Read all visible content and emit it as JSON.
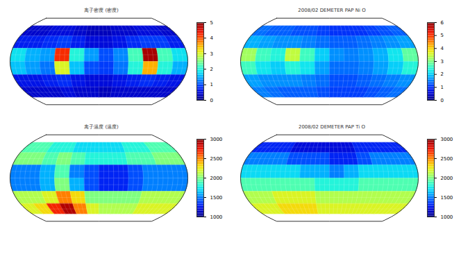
{
  "chart_data": [
    {
      "type": "map",
      "title": "离子密度 (密度)",
      "color": "jet",
      "lat_edges": [
        60,
        40,
        20,
        0,
        -20,
        -40,
        -60
      ],
      "lon_edges": [
        -180,
        -150,
        -120,
        -90,
        -60,
        -30,
        0,
        30,
        60,
        90,
        120,
        150,
        180
      ],
      "cells": [
        [
          0.4,
          0.4,
          0.5,
          0.5,
          0.4,
          0.3,
          0.3,
          0.4,
          0.4,
          0.5,
          0.5,
          0.4
        ],
        [
          0.7,
          0.7,
          0.8,
          0.9,
          0.7,
          0.5,
          0.5,
          0.6,
          0.8,
          0.9,
          0.9,
          0.7
        ],
        [
          1.8,
          1.5,
          1.4,
          4.2,
          2.0,
          1.4,
          1.0,
          1.3,
          2.2,
          4.8,
          2.2,
          1.8
        ],
        [
          1.6,
          1.4,
          1.2,
          3.0,
          1.6,
          1.0,
          0.9,
          1.2,
          2.0,
          3.5,
          2.0,
          1.5
        ],
        [
          0.6,
          0.6,
          0.7,
          0.8,
          0.6,
          0.5,
          0.5,
          0.6,
          0.7,
          0.8,
          0.7,
          0.6
        ],
        [
          0.4,
          0.4,
          0.4,
          0.5,
          0.4,
          0.4,
          0.3,
          0.4,
          0.4,
          0.4,
          0.4,
          0.4
        ]
      ],
      "colorbar": {
        "range": [
          0,
          5
        ],
        "ticks": [
          0,
          1,
          2,
          3,
          4,
          5
        ]
      }
    },
    {
      "type": "map",
      "title": "2008/02 DEMETER PAP Ni O",
      "color": "jet",
      "lat_edges": [
        60,
        40,
        20,
        0,
        -20,
        -40,
        -60
      ],
      "lon_edges": [
        -180,
        -150,
        -120,
        -90,
        -60,
        -30,
        0,
        30,
        60,
        90,
        120,
        150,
        180
      ],
      "cells": [
        [
          1.4,
          1.3,
          1.3,
          1.2,
          1.2,
          1.1,
          1.0,
          1.0,
          1.0,
          1.1,
          1.2,
          1.3
        ],
        [
          1.8,
          1.7,
          1.6,
          1.6,
          1.5,
          1.4,
          1.3,
          1.3,
          1.4,
          1.5,
          1.6,
          1.7
        ],
        [
          3.2,
          2.6,
          2.4,
          3.4,
          2.6,
          2.0,
          1.6,
          1.5,
          1.6,
          1.8,
          2.2,
          2.8
        ],
        [
          2.6,
          2.2,
          2.0,
          2.4,
          2.2,
          1.7,
          1.4,
          1.4,
          1.5,
          1.7,
          2.0,
          2.4
        ],
        [
          1.7,
          1.6,
          1.6,
          1.6,
          1.5,
          1.4,
          1.2,
          1.2,
          1.3,
          1.4,
          1.5,
          1.6
        ],
        [
          1.5,
          1.4,
          1.3,
          1.3,
          1.3,
          1.2,
          1.1,
          1.1,
          1.1,
          1.2,
          1.3,
          1.4
        ]
      ],
      "colorbar": {
        "range": [
          0,
          6
        ],
        "ticks": [
          0,
          1,
          2,
          3,
          4,
          5,
          6
        ]
      }
    },
    {
      "type": "map",
      "title": "离子温度 (温度)",
      "color": "jet",
      "lat_edges": [
        60,
        40,
        20,
        0,
        -20,
        -40,
        -60
      ],
      "lon_edges": [
        -180,
        -150,
        -120,
        -90,
        -60,
        -30,
        0,
        30,
        60,
        90,
        120,
        150,
        180
      ],
      "cells": [
        [
          1900,
          1900,
          1800,
          1800,
          1700,
          1700,
          1700,
          1700,
          1800,
          1800,
          1900,
          1900
        ],
        [
          2000,
          2000,
          1900,
          2000,
          1900,
          1800,
          1800,
          1800,
          1900,
          1900,
          2000,
          2000
        ],
        [
          1500,
          1500,
          1600,
          1900,
          1500,
          1400,
          1300,
          1300,
          1400,
          1500,
          1500,
          1500
        ],
        [
          1500,
          1500,
          1600,
          2000,
          1600,
          1400,
          1300,
          1300,
          1400,
          1500,
          1500,
          1500
        ],
        [
          2100,
          2100,
          2200,
          2500,
          2300,
          2000,
          2000,
          2000,
          2000,
          2100,
          2100,
          2100
        ],
        [
          2200,
          2300,
          2700,
          2900,
          2500,
          2200,
          2100,
          2100,
          2100,
          2200,
          2200,
          2200
        ]
      ],
      "colorbar": {
        "range": [
          1000,
          3000
        ],
        "ticks": [
          1000,
          1500,
          2000,
          2500,
          3000
        ]
      }
    },
    {
      "type": "map",
      "title": "2008/02 DEMETER PAP Ti O",
      "color": "jet",
      "lat_edges": [
        60,
        40,
        20,
        0,
        -20,
        -40,
        -60
      ],
      "lon_edges": [
        -180,
        -150,
        -120,
        -90,
        -60,
        -30,
        0,
        30,
        60,
        90,
        120,
        150,
        180
      ],
      "cells": [
        [
          1300,
          1300,
          1300,
          1200,
          1200,
          1200,
          1200,
          1200,
          1300,
          1300,
          1300,
          1300
        ],
        [
          1500,
          1500,
          1500,
          1400,
          1400,
          1400,
          1300,
          1300,
          1400,
          1500,
          1500,
          1500
        ],
        [
          1700,
          1700,
          1700,
          1700,
          1600,
          1600,
          1500,
          1600,
          1700,
          1700,
          1700,
          1700
        ],
        [
          1900,
          1900,
          1900,
          1900,
          1900,
          1800,
          1800,
          1800,
          1900,
          1900,
          1900,
          1900
        ],
        [
          2100,
          2100,
          2200,
          2200,
          2200,
          2100,
          2100,
          2100,
          2100,
          2100,
          2100,
          2100
        ],
        [
          2200,
          2200,
          2300,
          2300,
          2300,
          2200,
          2200,
          2200,
          2200,
          2200,
          2200,
          2200
        ]
      ],
      "colorbar": {
        "range": [
          1000,
          3000
        ],
        "ticks": [
          1000,
          1500,
          2000,
          2500,
          3000
        ]
      }
    }
  ]
}
